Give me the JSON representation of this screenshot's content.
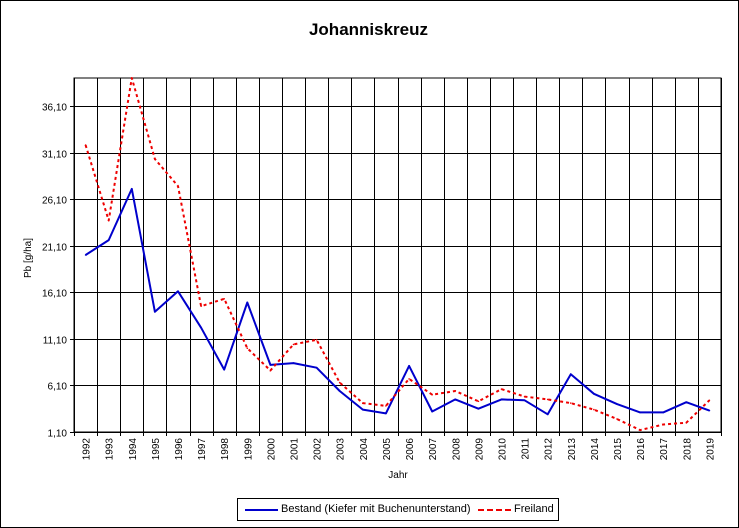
{
  "chart_data": {
    "type": "line",
    "title": "Johanniskreuz",
    "xlabel": "Jahr",
    "ylabel": "Pb [g/ha]",
    "categories": [
      "1992",
      "1993",
      "1994",
      "1995",
      "1996",
      "1997",
      "1998",
      "1999",
      "2000",
      "2001",
      "2002",
      "2003",
      "2004",
      "2005",
      "2006",
      "2007",
      "2008",
      "2009",
      "2010",
      "2011",
      "2012",
      "2013",
      "2014",
      "2015",
      "2016",
      "2017",
      "2018",
      "2019"
    ],
    "ylim": [
      1.1,
      39.1
    ],
    "yticks": [
      "1,10",
      "6,10",
      "11,10",
      "16,10",
      "21,10",
      "26,10",
      "31,10",
      "36,10"
    ],
    "grid": true,
    "legend_position": "bottom",
    "series": [
      {
        "name": "Bestand (Kiefer mit Buchenunterstand)",
        "color": "#0000cc",
        "style": "solid",
        "values": [
          20.1,
          21.7,
          27.2,
          14.0,
          16.2,
          12.3,
          7.8,
          15.0,
          8.3,
          8.5,
          8.0,
          5.5,
          3.5,
          3.1,
          8.2,
          3.3,
          4.6,
          3.6,
          4.6,
          4.5,
          3.0,
          7.3,
          5.2,
          4.1,
          3.2,
          3.2,
          4.3,
          3.4
        ]
      },
      {
        "name": "Freiland",
        "color": "#ee0000",
        "style": "dashed",
        "values": [
          31.9,
          23.8,
          39.1,
          30.4,
          27.5,
          14.6,
          15.4,
          10.1,
          7.7,
          10.5,
          11.0,
          6.4,
          4.2,
          3.9,
          6.8,
          5.1,
          5.5,
          4.4,
          5.7,
          4.9,
          4.6,
          4.2,
          3.5,
          2.5,
          1.3,
          1.9,
          2.1,
          4.5
        ]
      }
    ]
  }
}
